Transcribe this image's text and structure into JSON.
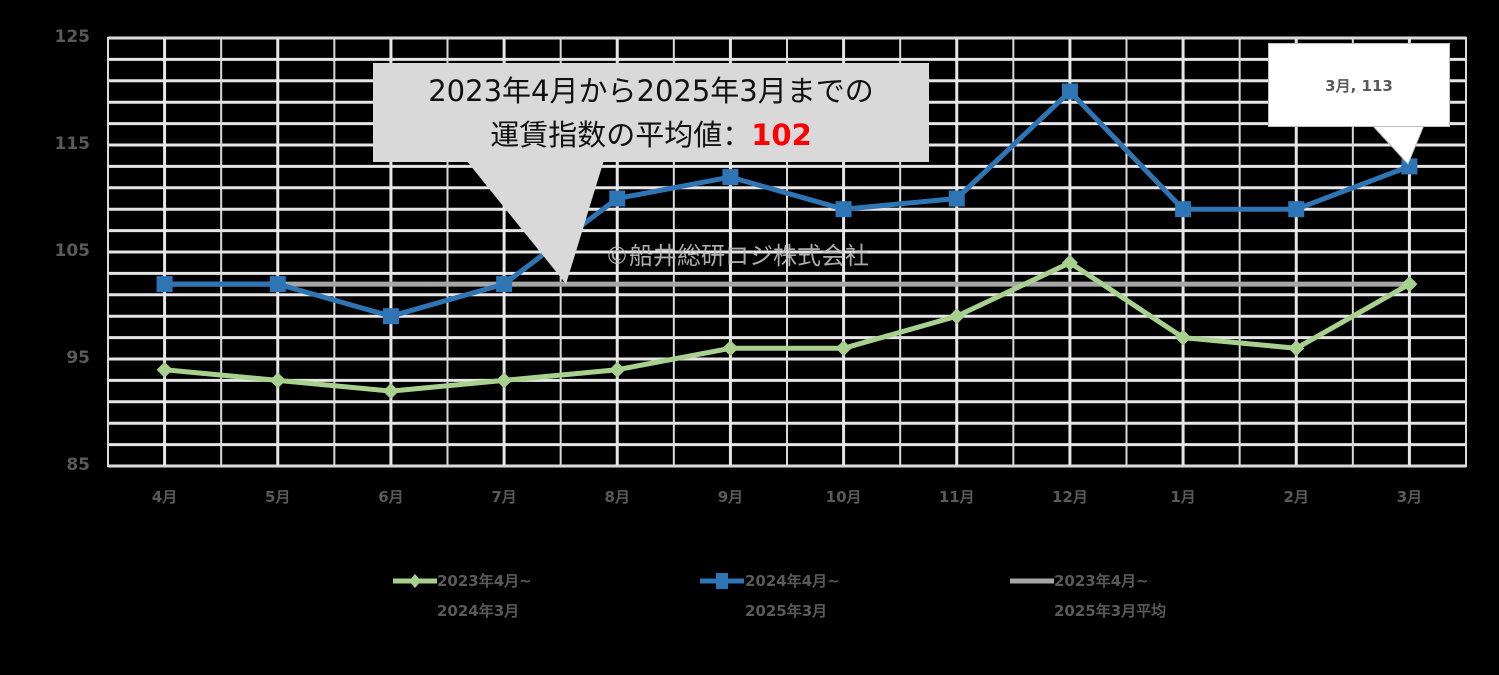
{
  "chart_data": {
    "type": "line",
    "title": "",
    "xlabel": "",
    "ylabel": "",
    "categories": [
      "4月",
      "5月",
      "6月",
      "7月",
      "8月",
      "9月",
      "10月",
      "11月",
      "12月",
      "1月",
      "2月",
      "3月"
    ],
    "ylim": [
      85,
      125
    ],
    "yticks": [
      85,
      95,
      105,
      115,
      125
    ],
    "minor_grid_step": 2,
    "grid": true,
    "legend_position": "bottom",
    "series": [
      {
        "name": "2023年4月~2024年3月",
        "color": "#a9d18e",
        "marker": "diamond",
        "values": [
          94,
          93,
          92,
          93,
          94,
          96,
          96,
          99,
          104,
          97,
          96,
          102
        ]
      },
      {
        "name": "2024年4月~2025年3月",
        "color": "#2e75b6",
        "marker": "square",
        "values": [
          102,
          102,
          99,
          102,
          110,
          112,
          109,
          110,
          120,
          109,
          109,
          113
        ]
      },
      {
        "name": "2023年4月~2025年3月平均",
        "color": "#a6a6a6",
        "marker": "none",
        "values": [
          102,
          102,
          102,
          102,
          102,
          102,
          102,
          102,
          102,
          102,
          102,
          102
        ]
      }
    ],
    "annotations": [
      {
        "text": "2023年4月から2025年3月までの運賃指数の平均値：102",
        "target": "average-line"
      },
      {
        "text": "3月, 113",
        "target": "series-2024 last point"
      },
      {
        "text": "©船井総研ロジ株式会社",
        "type": "watermark"
      }
    ]
  },
  "ui": {
    "yticks": [
      "125",
      "115",
      "105",
      "95",
      "85"
    ],
    "callout_main": {
      "line1": "2023年4月から2025年3月までの",
      "line2_prefix": "運賃指数の平均値：",
      "line2_value": "102"
    },
    "callout_point": "3月, 113",
    "watermark": "©船井総研ロジ株式会社",
    "legend": [
      {
        "line1": "2023年4月~",
        "line2": "2024年3月"
      },
      {
        "line1": "2024年4月~",
        "line2": "2025年3月"
      },
      {
        "line1": "2023年4月~",
        "line2": "2025年3月平均"
      }
    ],
    "colors": {
      "background": "#000000",
      "grid": "#e6e6e6",
      "axis_text": "#595959",
      "highlight": "#ff0000"
    }
  }
}
